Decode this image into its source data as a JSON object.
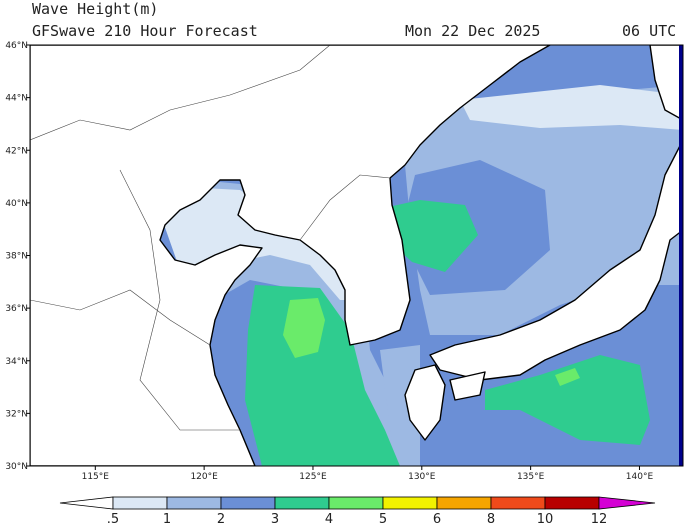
{
  "map": {
    "title": "Wave Height(m)",
    "subtitle": "GFSwave 210 Hour Forecast",
    "date": "Mon 22 Dec 2025",
    "time": "06 UTC",
    "lonlim": [
      112,
      142
    ],
    "latlim": [
      30,
      46
    ],
    "lonticks": [
      {
        "value": 115,
        "label": "115°E"
      },
      {
        "value": 120,
        "label": "120°E"
      },
      {
        "value": 125,
        "label": "125°E"
      },
      {
        "value": 130,
        "label": "130°E"
      },
      {
        "value": 135,
        "label": "135°E"
      },
      {
        "value": 140,
        "label": "140°E"
      }
    ],
    "latticks": [
      {
        "value": 46,
        "label": "46°N"
      },
      {
        "value": 44,
        "label": "44°N"
      },
      {
        "value": 42,
        "label": "42°N"
      },
      {
        "value": 40,
        "label": "40°N"
      },
      {
        "value": 38,
        "label": "38°N"
      },
      {
        "value": 36,
        "label": "36°N"
      },
      {
        "value": 34,
        "label": "34°N"
      },
      {
        "value": 32,
        "label": "32°N"
      },
      {
        "value": 30,
        "label": "30°N"
      }
    ],
    "colorbar": {
      "levels": [
        {
          "value": 0.5,
          "label": ".5"
        },
        1,
        2,
        3,
        4,
        5,
        6,
        8,
        10,
        12
      ],
      "colors": [
        "#ffffff",
        "#dce8f5",
        "#9db9e3",
        "#6b8fd6",
        "#2fcc8f",
        "#6aeb6a",
        "#f2f200",
        "#f5a500",
        "#ef4a1a",
        "#b80000",
        "#d400d4"
      ]
    }
  }
}
